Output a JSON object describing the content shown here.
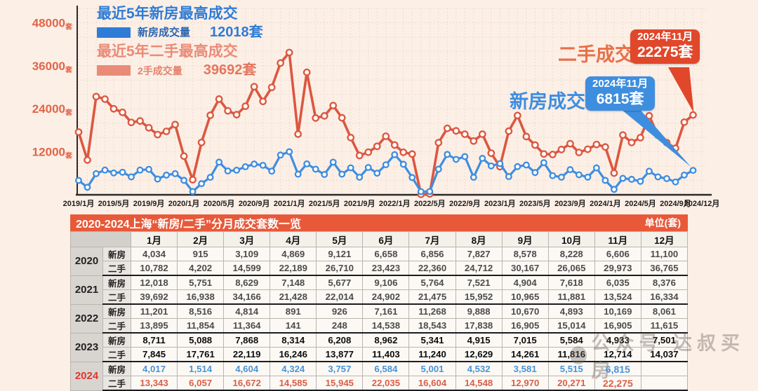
{
  "chart": {
    "y_axis": {
      "unit": "套",
      "ticks": [
        48000,
        36000,
        24000,
        12000
      ]
    },
    "x_ticks": [
      "2019/1月",
      "2019/5月",
      "2019/9月",
      "2020/1月",
      "2020/5月",
      "2020/9月",
      "2021/1月",
      "2021/5月",
      "2021/9月",
      "2022/1月",
      "2022/5月",
      "2022/9月",
      "2023/1月",
      "2023/5月",
      "2023/9月",
      "2024/1月",
      "2024/5月",
      "2024/9月",
      "2024/12月"
    ],
    "legend": {
      "new_title": "最近5年新房最高成交",
      "new_label": "新房成交量",
      "new_max": "12018套",
      "second_title": "最近5年二手最高成交",
      "second_label": "2手成交量",
      "second_max": "39692套"
    },
    "annotations": {
      "second": {
        "label": "二手成交",
        "date": "2024年11月",
        "value": "22275套"
      },
      "new": {
        "label": "新房成交",
        "date": "2024年11月",
        "value": "6815套"
      }
    },
    "colors": {
      "new": "#3e8ee0",
      "second": "#dc5740",
      "grid": "#edd5c8",
      "axis": "#2b2b2b"
    }
  },
  "chart_data": {
    "type": "line",
    "title": "",
    "xlabel": "",
    "ylabel": "套",
    "x_start": "2019/1",
    "x_end": "2024/12",
    "ylim": [
      0,
      52000
    ],
    "grid": true,
    "legend_position": "top-left",
    "note": "2019 values estimated from plot; 2020-2024 values from table",
    "series": [
      {
        "name": "2手成交量",
        "color": "#dc5740",
        "values": [
          17500,
          9700,
          27400,
          26700,
          24000,
          23000,
          20200,
          20600,
          18700,
          16800,
          17700,
          19600,
          10782,
          4202,
          14599,
          22189,
          26710,
          23423,
          22360,
          24712,
          30167,
          26065,
          29973,
          36765,
          39692,
          16938,
          34166,
          21428,
          22014,
          24902,
          21475,
          15952,
          10965,
          11881,
          13524,
          16334,
          13895,
          11854,
          11364,
          141,
          248,
          14538,
          18543,
          17838,
          16905,
          15014,
          16905,
          11615,
          7845,
          17761,
          22119,
          16246,
          13877,
          11403,
          11240,
          12629,
          14261,
          11816,
          12714,
          14037,
          13343,
          6057,
          16672,
          14585,
          15945,
          22035,
          16604,
          14548,
          12970,
          20271,
          22275
        ]
      },
      {
        "name": "新房成交量",
        "color": "#3e8ee0",
        "values": [
          4000,
          2100,
          5900,
          6900,
          6100,
          6300,
          5000,
          6900,
          7100,
          4400,
          5500,
          5900,
          4034,
          915,
          3109,
          4869,
          9121,
          6658,
          6856,
          7827,
          8578,
          8228,
          6606,
          11100,
          12018,
          5751,
          8629,
          7148,
          5677,
          9106,
          5764,
          7521,
          4904,
          7618,
          6035,
          8376,
          11201,
          8516,
          4814,
          891,
          926,
          7161,
          11268,
          9888,
          10670,
          4893,
          10169,
          8061,
          8711,
          5088,
          7868,
          8314,
          6208,
          8962,
          5341,
          4915,
          7015,
          5584,
          4933,
          7501,
          4017,
          1514,
          4604,
          4324,
          3757,
          6584,
          5001,
          4532,
          3581,
          5515,
          6815
        ]
      }
    ]
  },
  "table": {
    "title": "2020-2024上海“新房/二手”分月成交套数一览",
    "unit": "单位(套)",
    "months": [
      "1月",
      "2月",
      "3月",
      "4月",
      "5月",
      "6月",
      "7月",
      "8月",
      "9月",
      "10月",
      "11月",
      "12月"
    ],
    "groups": [
      {
        "year": "2020",
        "rows": [
          {
            "type": "新房",
            "values": [
              "4,034",
              "915",
              "3,109",
              "4,869",
              "9,121",
              "6,658",
              "6,856",
              "7,827",
              "8,578",
              "8,228",
              "6,606",
              "11,100"
            ]
          },
          {
            "type": "二手",
            "values": [
              "10,782",
              "4,202",
              "14,599",
              "22,189",
              "26,710",
              "23,423",
              "22,360",
              "24,712",
              "30,167",
              "26,065",
              "29,973",
              "36,765"
            ]
          }
        ]
      },
      {
        "year": "2021",
        "rows": [
          {
            "type": "新房",
            "values": [
              "12,018",
              "5,751",
              "8,629",
              "7,148",
              "5,677",
              "9,106",
              "5,764",
              "7,521",
              "4,904",
              "7,618",
              "6,035",
              "8,376"
            ]
          },
          {
            "type": "二手",
            "values": [
              "39,692",
              "16,938",
              "34,166",
              "21,428",
              "22,014",
              "24,902",
              "21,475",
              "15,952",
              "10,965",
              "11,881",
              "13,524",
              "16,334"
            ]
          }
        ]
      },
      {
        "year": "2022",
        "rows": [
          {
            "type": "新房",
            "values": [
              "11,201",
              "8,516",
              "4,814",
              "891",
              "926",
              "7,161",
              "11,268",
              "9,888",
              "10,670",
              "4,893",
              "10,169",
              "8,061"
            ]
          },
          {
            "type": "二手",
            "values": [
              "13,895",
              "11,854",
              "11,364",
              "141",
              "248",
              "14,538",
              "18,543",
              "17,838",
              "16,905",
              "15,014",
              "16,905",
              "11,615"
            ]
          }
        ]
      },
      {
        "year": "2023",
        "rows": [
          {
            "type": "新房",
            "values": [
              "8,711",
              "5,088",
              "7,868",
              "8,314",
              "6,208",
              "8,962",
              "5,341",
              "4,915",
              "7,015",
              "5,584",
              "4,933",
              "7,501"
            ]
          },
          {
            "type": "二手",
            "values": [
              "7,845",
              "17,761",
              "22,119",
              "16,246",
              "13,877",
              "11,403",
              "11,240",
              "12,629",
              "14,261",
              "11,816",
              "12,714",
              "14,037"
            ]
          }
        ]
      },
      {
        "year": "2024",
        "rows": [
          {
            "type": "新房",
            "values": [
              "4,017",
              "1,514",
              "4,604",
              "4,324",
              "3,757",
              "6,584",
              "5,001",
              "4,532",
              "3,581",
              "5,515",
              "6,815",
              ""
            ]
          },
          {
            "type": "二手",
            "values": [
              "13,343",
              "6,057",
              "16,672",
              "14,585",
              "15,945",
              "22,035",
              "16,604",
              "14,548",
              "12,970",
              "20,271",
              "22,275",
              ""
            ]
          }
        ]
      }
    ]
  },
  "watermark": {
    "text": "公众号 达叔买房"
  }
}
